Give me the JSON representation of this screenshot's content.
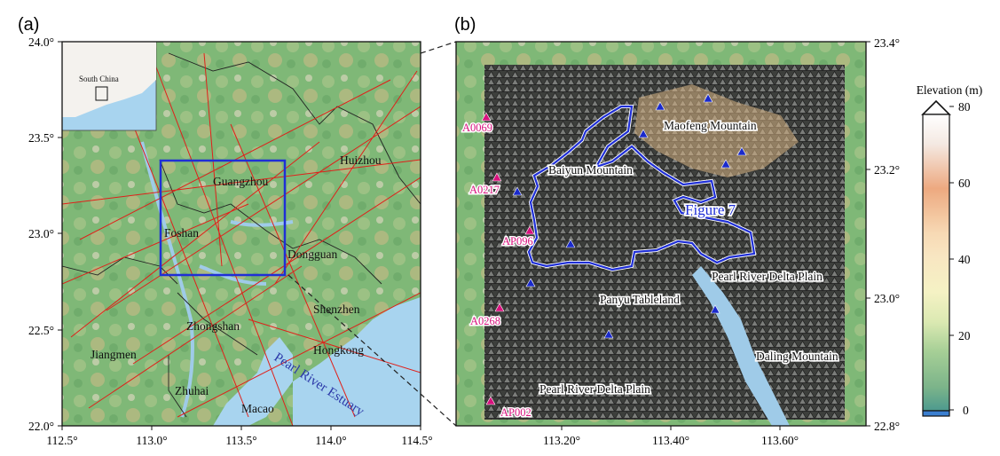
{
  "panel_a": {
    "label": "(a)",
    "x_ticks": [
      "112.5°",
      "113.0°",
      "113.5°",
      "114.0°",
      "114.5°"
    ],
    "y_ticks": [
      "24.0°",
      "23.5°",
      "23.0°",
      "22.5°",
      "22.0°"
    ],
    "inset_label": "South China",
    "cities": {
      "huizhou": "Huizhou",
      "guangzhou": "Guangzhou",
      "foshan": "Foshan",
      "dongguan": "Dongguan",
      "shenzhen": "Shenzhen",
      "zhongshan": "Zhongshan",
      "hongkong": "Hongkong",
      "jiangmen": "Jiangmen",
      "zhuhai": "Zhuhai",
      "macao": "Macao"
    },
    "estuary": "Pearl River Estuary"
  },
  "panel_b": {
    "label": "(b)",
    "x_ticks": [
      "113.20°",
      "113.40°",
      "113.60°"
    ],
    "y_ticks": [
      "23.4°",
      "23.2°",
      "23.0°",
      "22.8°"
    ],
    "stations": [
      "A0069",
      "A0217",
      "AP096",
      "A0268",
      "AP002"
    ],
    "places": {
      "maofeng": "Maofeng Mountain",
      "baiyun": "Baiyun Mountain",
      "figure7": "Figure 7",
      "prdp_upper": "Pearl River Delta Plain",
      "panyu": "Panyu Tableland",
      "daling": "Daling Mountain",
      "prdp_lower": "Pearl River Delta Plain"
    }
  },
  "colorbar": {
    "title": "Elevation (m)",
    "ticks": [
      "80",
      "60",
      "40",
      "20",
      "0"
    ],
    "min": 0,
    "max": 80
  },
  "colors": {
    "study_box": "#1f2fd6",
    "faults": "#e0201a",
    "water": "#a8d4ef",
    "station_magenta": "#d8127e",
    "station_blue": "#1a2acc"
  }
}
